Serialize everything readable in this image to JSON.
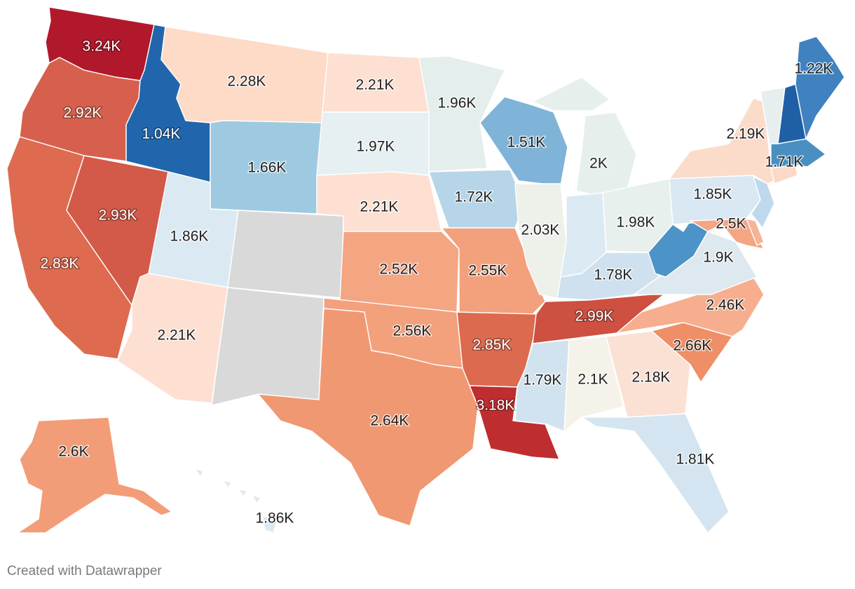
{
  "footer": {
    "credit": "Created with Datawrapper"
  },
  "colors": {
    "no_data": "#d9d9d9",
    "border": "#ffffff",
    "scale_note": "diverging blue (low) to red (high)"
  },
  "states": [
    {
      "id": "WA",
      "label": "3.24K",
      "value": 3.24,
      "fill": "#b2182b",
      "dark": true
    },
    {
      "id": "OR",
      "label": "2.92K",
      "value": 2.92,
      "fill": "#d6604d",
      "dark": true
    },
    {
      "id": "CA",
      "label": "2.83K",
      "value": 2.83,
      "fill": "#de6b50",
      "dark": true
    },
    {
      "id": "NV",
      "label": "2.93K",
      "value": 2.93,
      "fill": "#d35a48",
      "dark": true
    },
    {
      "id": "ID",
      "label": "1.04K",
      "value": 1.04,
      "fill": "#2166ac",
      "dark": true
    },
    {
      "id": "MT",
      "label": "2.28K",
      "value": 2.28,
      "fill": "#fddbc7",
      "dark": false
    },
    {
      "id": "WY",
      "label": "1.66K",
      "value": 1.66,
      "fill": "#9ecae1",
      "dark": false
    },
    {
      "id": "UT",
      "label": "1.86K",
      "value": 1.86,
      "fill": "#dbe9f2",
      "dark": false
    },
    {
      "id": "CO",
      "label": "",
      "value": null,
      "fill": "#d9d9d9",
      "dark": false
    },
    {
      "id": "AZ",
      "label": "2.21K",
      "value": 2.21,
      "fill": "#fde0d2",
      "dark": false
    },
    {
      "id": "NM",
      "label": "",
      "value": null,
      "fill": "#d9d9d9",
      "dark": false
    },
    {
      "id": "ND",
      "label": "2.21K",
      "value": 2.21,
      "fill": "#fde0d2",
      "dark": false
    },
    {
      "id": "SD",
      "label": "1.97K",
      "value": 1.97,
      "fill": "#e6eff1",
      "dark": false
    },
    {
      "id": "NE",
      "label": "2.21K",
      "value": 2.21,
      "fill": "#fde0d2",
      "dark": false
    },
    {
      "id": "KS",
      "label": "2.52K",
      "value": 2.52,
      "fill": "#f4a582",
      "dark": false
    },
    {
      "id": "OK",
      "label": "2.56K",
      "value": 2.56,
      "fill": "#f3a07c",
      "dark": false
    },
    {
      "id": "TX",
      "label": "2.64K",
      "value": 2.64,
      "fill": "#f09872",
      "dark": false
    },
    {
      "id": "MN",
      "label": "1.96K",
      "value": 1.96,
      "fill": "#e4eeec",
      "dark": false
    },
    {
      "id": "IA",
      "label": "1.72K",
      "value": 1.72,
      "fill": "#b7d5e8",
      "dark": false
    },
    {
      "id": "MO",
      "label": "2.55K",
      "value": 2.55,
      "fill": "#f3a07c",
      "dark": false
    },
    {
      "id": "AR",
      "label": "2.85K",
      "value": 2.85,
      "fill": "#dc6a4e",
      "dark": true
    },
    {
      "id": "LA",
      "label": "3.18K",
      "value": 3.18,
      "fill": "#be2d30",
      "dark": true
    },
    {
      "id": "WI",
      "label": "1.51K",
      "value": 1.51,
      "fill": "#7fb3d8",
      "dark": false
    },
    {
      "id": "IL",
      "label": "2.03K",
      "value": 2.03,
      "fill": "#eef0ea",
      "dark": false
    },
    {
      "id": "MI",
      "label": "2K",
      "value": 2.0,
      "fill": "#e7efed",
      "dark": false
    },
    {
      "id": "IN",
      "label": "",
      "value": null,
      "fill": "#dbe9f2",
      "dark": false
    },
    {
      "id": "OH",
      "label": "1.98K",
      "value": 1.98,
      "fill": "#e8f0ee",
      "dark": false
    },
    {
      "id": "KY",
      "label": "1.78K",
      "value": 1.78,
      "fill": "#cfe1ee",
      "dark": false
    },
    {
      "id": "TN",
      "label": "2.99K",
      "value": 2.99,
      "fill": "#cd5040",
      "dark": true
    },
    {
      "id": "MS",
      "label": "1.79K",
      "value": 1.79,
      "fill": "#d1e3ef",
      "dark": false
    },
    {
      "id": "AL",
      "label": "2.1K",
      "value": 2.1,
      "fill": "#f5f3e9",
      "dark": false
    },
    {
      "id": "GA",
      "label": "2.18K",
      "value": 2.18,
      "fill": "#fbe1d3",
      "dark": false
    },
    {
      "id": "FL",
      "label": "1.81K",
      "value": 1.81,
      "fill": "#d4e5f1",
      "dark": false
    },
    {
      "id": "SC",
      "label": "2.66K",
      "value": 2.66,
      "fill": "#ee8f67",
      "dark": false
    },
    {
      "id": "NC",
      "label": "2.46K",
      "value": 2.46,
      "fill": "#f6ae8e",
      "dark": false
    },
    {
      "id": "VA",
      "label": "1.9K",
      "value": 1.9,
      "fill": "#dde9ef",
      "dark": false
    },
    {
      "id": "WV",
      "label": "",
      "value": null,
      "fill": "#4c93c7",
      "dark": false
    },
    {
      "id": "PA",
      "label": "1.85K",
      "value": 1.85,
      "fill": "#d9e8f2",
      "dark": false
    },
    {
      "id": "NY",
      "label": "2.19K",
      "value": 2.19,
      "fill": "#fbdccb",
      "dark": false
    },
    {
      "id": "MD",
      "label": "2.5K",
      "value": 2.5,
      "fill": "#f4a582",
      "dark": false
    },
    {
      "id": "NJ",
      "label": "",
      "value": null,
      "fill": "#bfd9ec",
      "dark": false
    },
    {
      "id": "DE",
      "label": "",
      "value": null,
      "fill": "#f5b497",
      "dark": false
    },
    {
      "id": "CT",
      "label": "",
      "value": null,
      "fill": "#fbd9c6",
      "dark": false
    },
    {
      "id": "MA",
      "label": "1.71K",
      "value": 1.71,
      "fill": "#4a8fc2",
      "dark": false
    },
    {
      "id": "VT",
      "label": "",
      "value": null,
      "fill": "#e6efee",
      "dark": false
    },
    {
      "id": "NH",
      "label": "",
      "value": null,
      "fill": "#1f5fa6",
      "dark": false
    },
    {
      "id": "ME",
      "label": "1.22K",
      "value": 1.22,
      "fill": "#3f82bf",
      "dark": false
    },
    {
      "id": "AK",
      "label": "2.6K",
      "value": 2.6,
      "fill": "#f29d78",
      "dark": false
    },
    {
      "id": "HI",
      "label": "1.86K",
      "value": 1.86,
      "fill": "#dbe9f2",
      "dark": false
    }
  ]
}
